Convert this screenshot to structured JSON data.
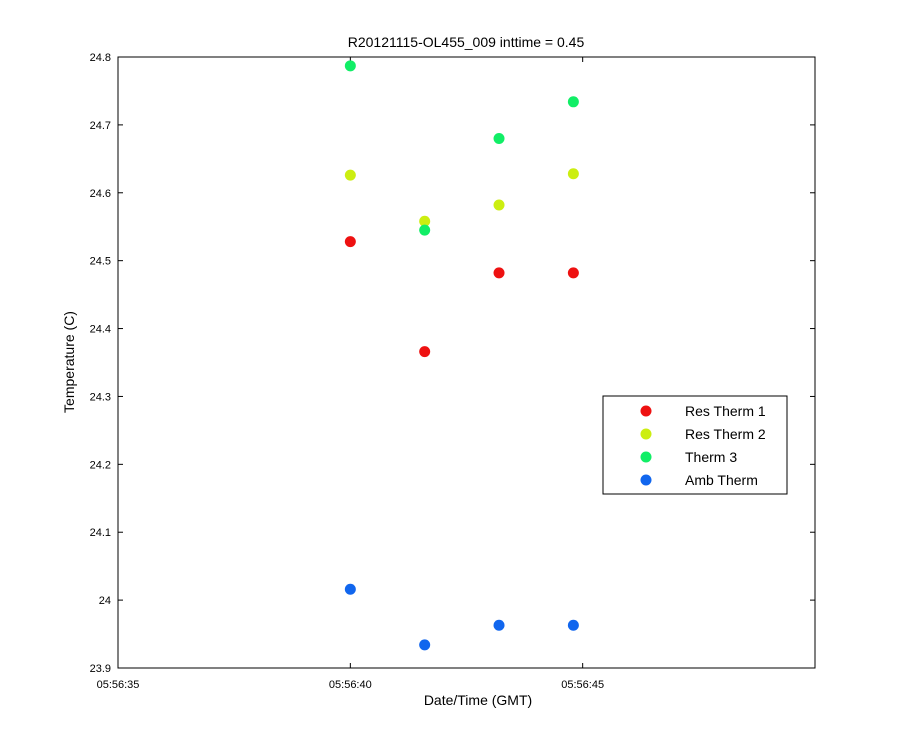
{
  "chart_data": {
    "type": "scatter",
    "title": "R20121115-OL455_009 inttime = 0.45",
    "xlabel": "Date/Time (GMT)",
    "ylabel": "Temperature (C)",
    "x_ticks": [
      "05:56:35",
      "05:56:40",
      "05:56:45"
    ],
    "y_ticks": [
      "23.9",
      "24",
      "24.1",
      "24.2",
      "24.3",
      "24.4",
      "24.5",
      "24.6",
      "24.7",
      "24.8"
    ],
    "xlim": [
      "05:56:35",
      "05:56:50"
    ],
    "ylim": [
      23.9,
      24.8
    ],
    "x": [
      "05:56:40.0",
      "05:56:41.6",
      "05:56:43.2",
      "05:56:44.8"
    ],
    "series": [
      {
        "name": "Res Therm 1",
        "color": "#ee1111",
        "values": [
          24.528,
          24.366,
          24.482,
          24.482
        ]
      },
      {
        "name": "Res Therm 2",
        "color": "#ccee11",
        "values": [
          24.626,
          24.558,
          24.582,
          24.628
        ]
      },
      {
        "name": "Therm 3",
        "color": "#11ee66",
        "values": [
          24.787,
          24.545,
          24.68,
          24.734
        ]
      },
      {
        "name": "Amb Therm",
        "color": "#1166ee",
        "values": [
          24.016,
          23.934,
          23.963,
          23.963
        ]
      }
    ],
    "legend": "right",
    "grid": false
  }
}
